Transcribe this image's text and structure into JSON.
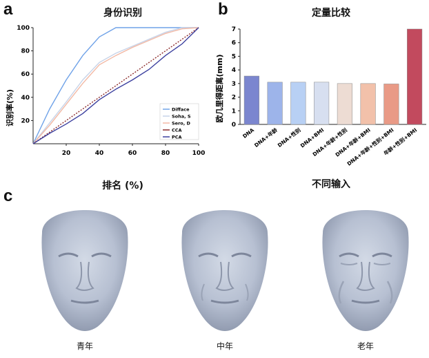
{
  "panels": {
    "a": "a",
    "b": "b",
    "c": "c"
  },
  "chart_data": [
    {
      "type": "line",
      "title": "身份识别",
      "xlabel": "排名 (%)",
      "ylabel": "识别率(%)",
      "xlim": [
        0,
        100
      ],
      "ylim": [
        0,
        100
      ],
      "xticks": [
        20,
        40,
        60,
        80,
        100
      ],
      "yticks": [
        20,
        40,
        60,
        80,
        100
      ],
      "legend_position": "bottom-right",
      "series": [
        {
          "name": "Difface",
          "color": "#6fa2e8",
          "x": [
            0,
            10,
            20,
            30,
            40,
            50,
            60,
            100
          ],
          "y": [
            0,
            30,
            55,
            76,
            92,
            100,
            100,
            100
          ]
        },
        {
          "name": "Soha, S",
          "color": "#c7d3e8",
          "x": [
            0,
            10,
            20,
            30,
            40,
            50,
            60,
            70,
            80,
            90,
            100
          ],
          "y": [
            0,
            18,
            36,
            55,
            70,
            78,
            84,
            90,
            96,
            100,
            100
          ]
        },
        {
          "name": "Sero, D",
          "color": "#f2b9a5",
          "x": [
            0,
            10,
            20,
            30,
            40,
            50,
            60,
            70,
            80,
            90,
            100
          ],
          "y": [
            0,
            16,
            34,
            52,
            68,
            76,
            83,
            89,
            95,
            99,
            100
          ]
        },
        {
          "name": "CCA",
          "color": "#8b2a2a",
          "x": [
            0,
            20,
            40,
            60,
            80,
            100
          ],
          "y": [
            0,
            20,
            40,
            60,
            80,
            100
          ]
        },
        {
          "name": "PCA",
          "color": "#3b3f9e",
          "x": [
            0,
            10,
            20,
            30,
            40,
            50,
            60,
            70,
            80,
            90,
            100
          ],
          "y": [
            0,
            9,
            17,
            26,
            38,
            47,
            55,
            64,
            76,
            86,
            100
          ]
        }
      ]
    },
    {
      "type": "bar",
      "title": "定量比较",
      "xlabel": "不同输入",
      "ylabel": "欧几里得距离(mm)",
      "ylim": [
        0,
        7
      ],
      "yticks": [
        0,
        1,
        2,
        3,
        4,
        5,
        6,
        7
      ],
      "categories": [
        "DNA",
        "DNA+年龄",
        "DNA+性别",
        "DNA+BMI",
        "DNA+年龄+性别",
        "DNA+年龄+BMI",
        "DNA+年龄+性别+BMI",
        "年龄+性别+BMI"
      ],
      "values": [
        3.55,
        3.1,
        3.1,
        3.1,
        3.0,
        3.0,
        2.97,
        7.0
      ],
      "colors": [
        "#7b86cf",
        "#9db4ea",
        "#b8d0f4",
        "#d7dff0",
        "#eddcd3",
        "#f2c1aa",
        "#e99a86",
        "#c24a5e"
      ]
    }
  ],
  "faces": [
    {
      "label": "青年"
    },
    {
      "label": "中年"
    },
    {
      "label": "老年"
    }
  ]
}
